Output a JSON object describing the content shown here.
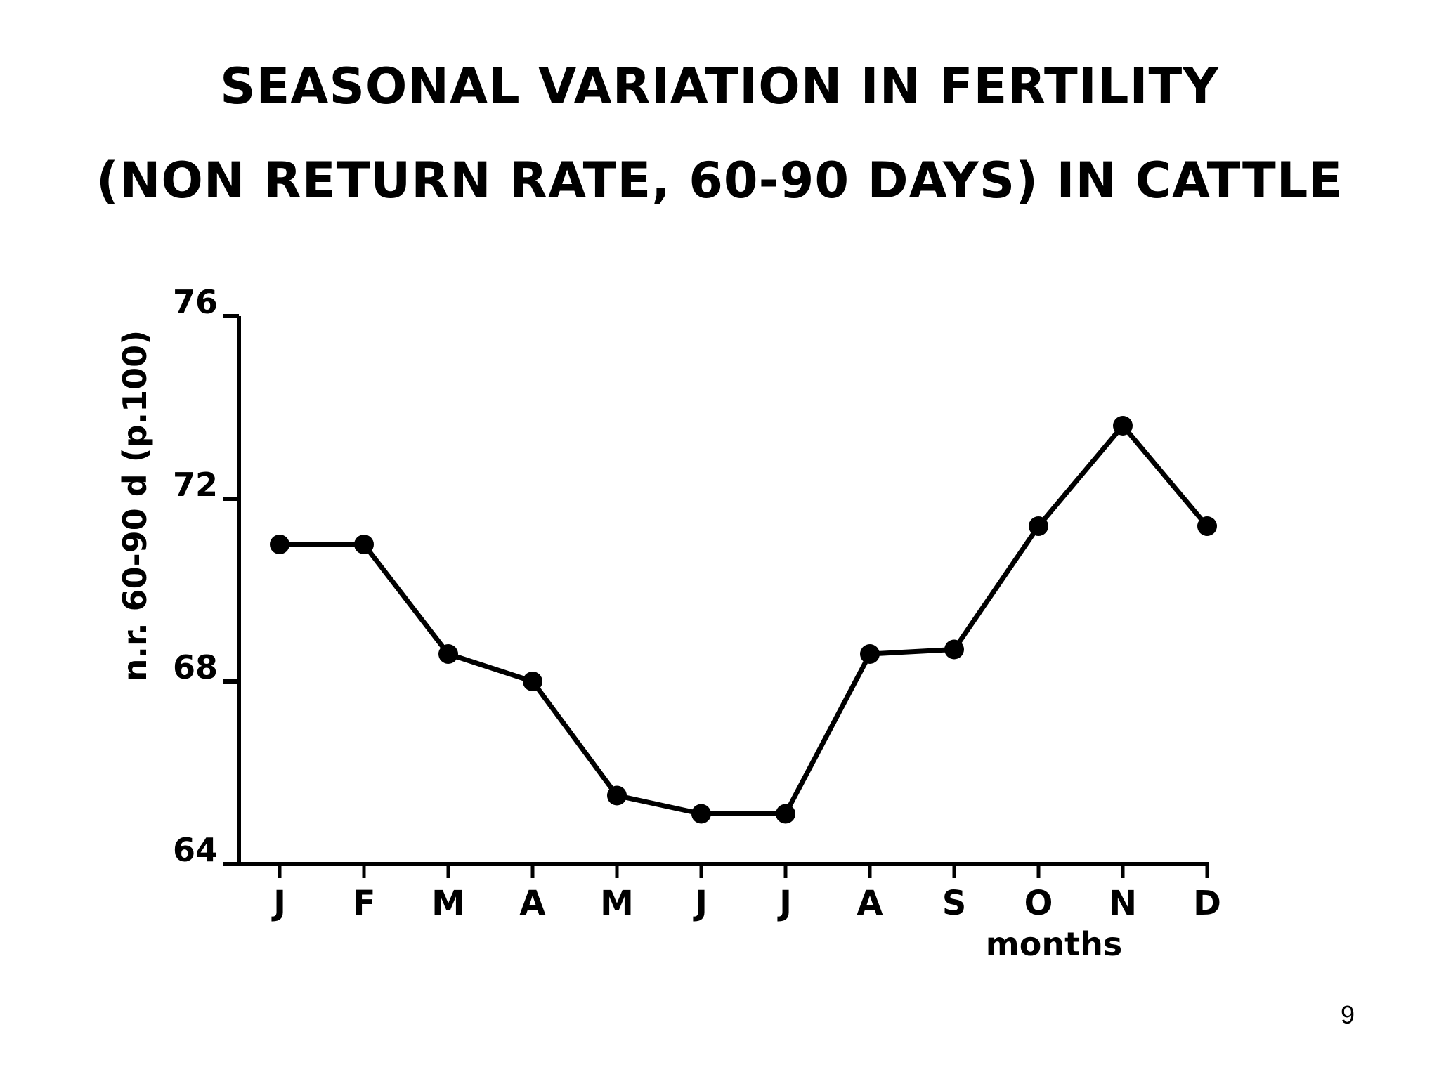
{
  "slide": {
    "title_line1": "SEASONAL VARIATION IN FERTILITY",
    "title_line2": "(NON RETURN RATE, 60-90 DAYS) IN CATTLE",
    "page_number": "9"
  },
  "chart_data": {
    "type": "line",
    "title": "",
    "xlabel": "months",
    "ylabel": "n.r. 60-90 d (p.100)",
    "categories": [
      "J",
      "F",
      "M",
      "A",
      "M",
      "J",
      "J",
      "A",
      "S",
      "O",
      "N",
      "D"
    ],
    "series": [
      {
        "values": [
          71.0,
          71.0,
          68.6,
          68.0,
          65.5,
          65.1,
          65.1,
          68.6,
          68.7,
          71.4,
          73.6,
          71.4
        ]
      }
    ],
    "yticks": [
      "64",
      "68",
      "72",
      "76"
    ],
    "ylim": [
      64,
      76
    ],
    "grid": false,
    "legend": "none",
    "color": "#000000"
  }
}
